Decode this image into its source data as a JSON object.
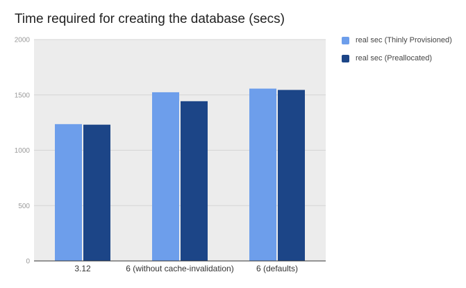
{
  "chart_data": {
    "type": "bar",
    "title": "Time required for creating the database (secs)",
    "categories": [
      "3.12",
      "6 (without cache-invalidation)",
      "6 (defaults)"
    ],
    "series": [
      {
        "name": "real sec (Thinly Provisioned)",
        "values": [
          1236,
          1524,
          1557
        ],
        "color": "#6d9eeb"
      },
      {
        "name": "real sec (Preallocated)",
        "values": [
          1231,
          1443,
          1545
        ],
        "color": "#1c4587"
      }
    ],
    "ylim": [
      0,
      2000
    ],
    "yticks": [
      0,
      500,
      1000,
      1500,
      2000
    ],
    "grid": true,
    "legend": "top-right",
    "background_color": "#ececec",
    "grid_color": "#d4d4d4"
  }
}
